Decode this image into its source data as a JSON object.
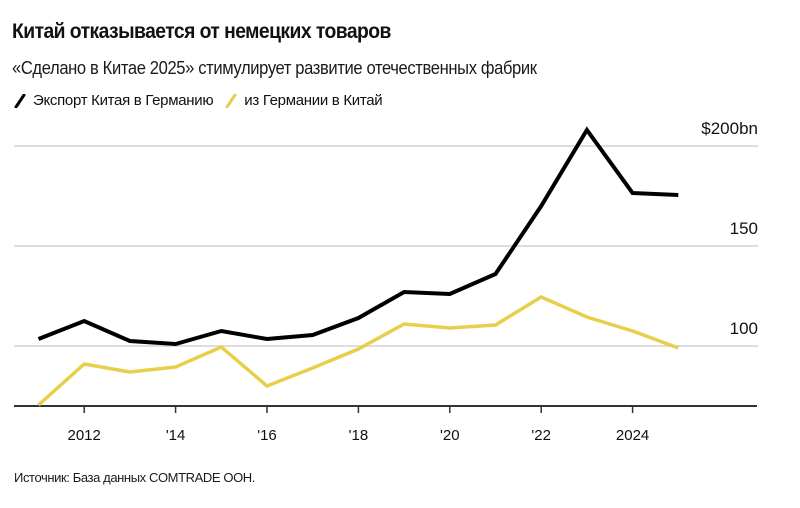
{
  "header": {
    "title": "Китай отказывается от немецких товаров",
    "subtitle": "«Сделано в Китае 2025» стимулирует развитие отечественных фабрик"
  },
  "legend": [
    {
      "label": "Экспорт Китая в Германию",
      "color": "#000000",
      "icon": "diagonal-line-swatch"
    },
    {
      "label": "из Германии в Китай",
      "color": "#e8cf4a",
      "icon": "diagonal-line-swatch"
    }
  ],
  "footer": {
    "source": "Источник: База данных COMTRADE ООН."
  },
  "chart_data": {
    "type": "line",
    "title": "Китай отказывается от немецких товаров",
    "subtitle": "«Сделано в Китае 2025» стимулирует развитие отечественных фабрик",
    "xlabel": "",
    "ylabel": "",
    "x": [
      2011,
      2012,
      2013,
      2014,
      2015,
      2016,
      2017,
      2018,
      2019,
      2020,
      2021,
      2022,
      2023,
      2024,
      2025
    ],
    "x_ticks": [
      {
        "value": 2012,
        "label": "2012"
      },
      {
        "value": 2014,
        "label": "'14"
      },
      {
        "value": 2016,
        "label": "'16"
      },
      {
        "value": 2018,
        "label": "'18"
      },
      {
        "value": 2020,
        "label": "'20"
      },
      {
        "value": 2022,
        "label": "'22"
      },
      {
        "value": 2024,
        "label": "2024"
      }
    ],
    "y_ticks": [
      {
        "value": 100,
        "label": "100"
      },
      {
        "value": 150,
        "label": "150"
      },
      {
        "value": 200,
        "label": "$200bn"
      }
    ],
    "ylim": [
      70,
      215
    ],
    "grid": true,
    "legend_position": "top-left",
    "series": [
      {
        "name": "Экспорт Китая в Германию",
        "color": "#000000",
        "values": [
          103.5,
          112.5,
          102.5,
          101,
          107.5,
          103.5,
          105.5,
          114,
          127,
          126,
          136,
          170,
          208,
          176.5,
          175.5
        ]
      },
      {
        "name": "из Германии в Китай",
        "color": "#e8cf4a",
        "values": [
          70.5,
          91,
          87,
          89.5,
          99.5,
          80,
          89,
          98.5,
          111,
          109,
          110.5,
          124.5,
          114.5,
          107.5,
          99
        ]
      }
    ],
    "source": "Источник: База данных COMTRADE ООН."
  }
}
